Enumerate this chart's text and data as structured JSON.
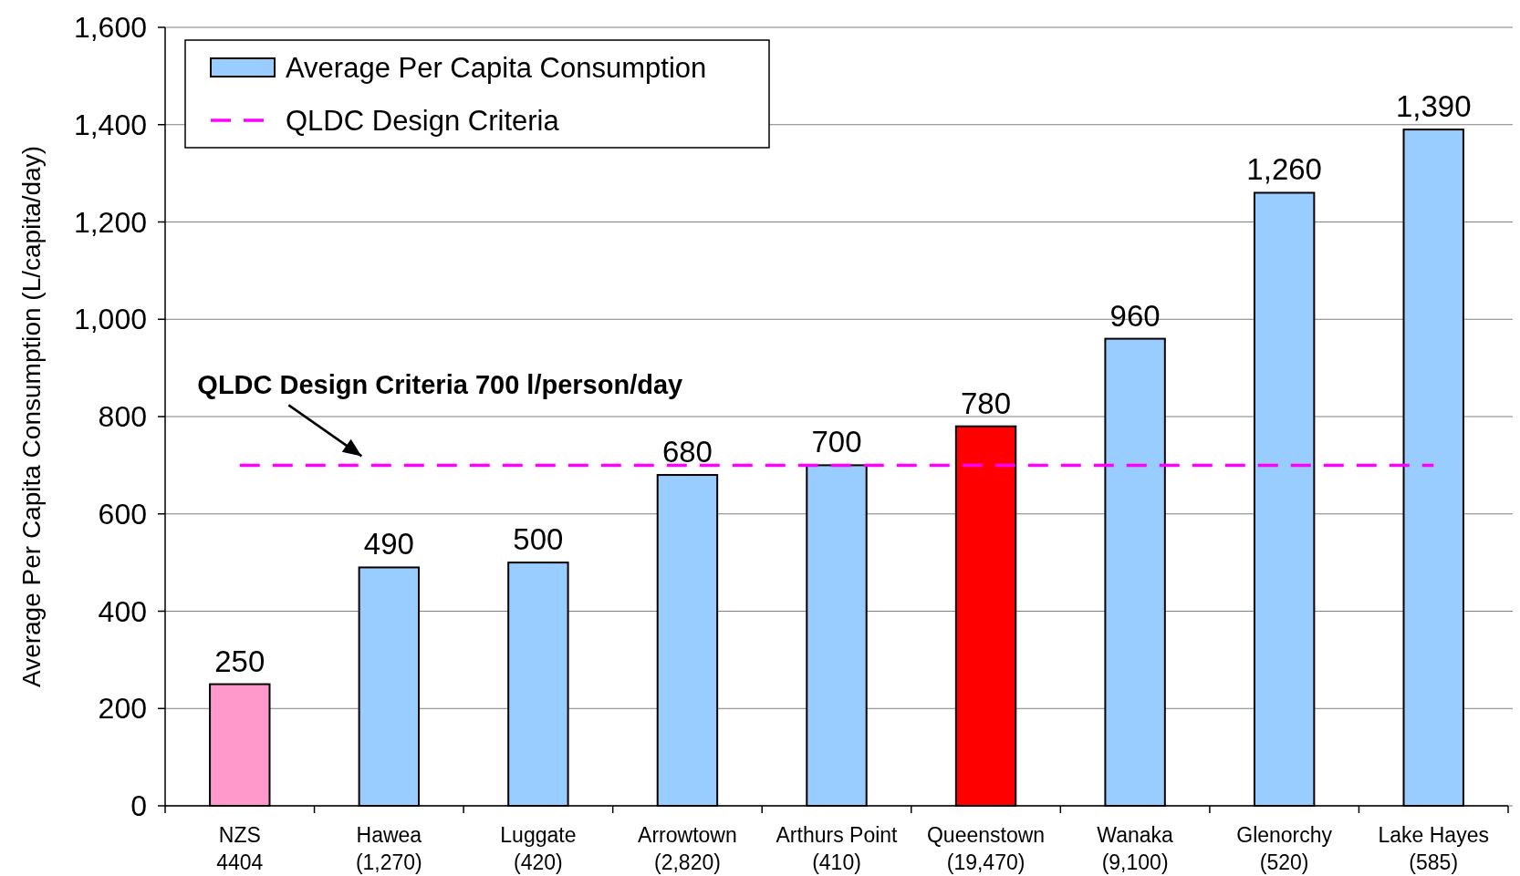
{
  "chart_data": {
    "type": "bar",
    "ylabel": "Average Per Capita Consumption (L/capita/day)",
    "categories": [
      "NZS\n4404",
      "Hawea\n(1,270)",
      "Luggate\n(420)",
      "Arrowtown\n(2,820)",
      "Arthurs Point\n(410)",
      "Queenstown\n(19,470)",
      "Wanaka\n(9,100)",
      "Glenorchy\n(520)",
      "Lake Hayes\n(585)"
    ],
    "series": [
      {
        "name": "Average Per Capita Consumption",
        "color": "#99ccff",
        "colors": [
          "#ff99cc",
          "#99ccff",
          "#99ccff",
          "#99ccff",
          "#99ccff",
          "#ff0000",
          "#99ccff",
          "#99ccff",
          "#99ccff"
        ],
        "values": [
          250,
          490,
          500,
          680,
          700,
          780,
          960,
          1260,
          1390
        ],
        "value_labels": [
          "250",
          "490",
          "500",
          "680",
          "700",
          "780",
          "960",
          "1,260",
          "1,390"
        ]
      }
    ],
    "ylim": [
      0,
      1600
    ],
    "yticks": [
      0,
      {
        "value": 200,
        "label": "200"
      },
      {
        "value": 400,
        "label": "400"
      },
      {
        "value": 600,
        "label": "600"
      },
      {
        "value": 800,
        "label": "800"
      },
      {
        "value": 1000,
        "label": "1,000"
      },
      {
        "value": 1200,
        "label": "1,200"
      },
      {
        "value": 1400,
        "label": "1,400"
      },
      {
        "value": 1600,
        "label": "1,600"
      }
    ],
    "grid": "y",
    "legend": "top left",
    "ref_lines": [
      {
        "axis": "y",
        "value": 700,
        "label": "QLDC Design Criteria",
        "color": "#ff00ff",
        "line_style": "dashed"
      }
    ],
    "annotations": [
      {
        "text": "QLDC Design Criteria 700 l/person/day",
        "x": "Hawea\n(1,270)",
        "y": 700
      }
    ]
  }
}
